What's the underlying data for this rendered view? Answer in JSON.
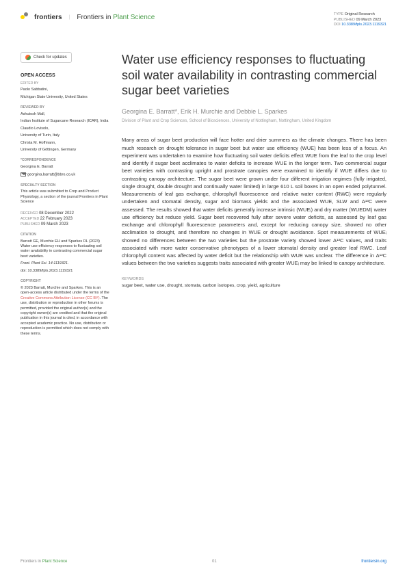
{
  "header": {
    "logo_text": "frontiers",
    "journal_prefix": "Frontiers in ",
    "journal_subject": "Plant Science",
    "type_label": "TYPE ",
    "type_value": "Original Research",
    "published_label": "PUBLISHED ",
    "published_value": "09 March 2023",
    "doi_label": "DOI ",
    "doi_value": "10.3389/fpls.2023.1119321"
  },
  "sidebar": {
    "check_updates": "Check for updates",
    "open_access": "OPEN ACCESS",
    "edited_by": "EDITED BY",
    "editor": "Paolo Sabbatini,",
    "editor_affil": "Michigan State University, United States",
    "reviewed_by": "REVIEWED BY",
    "rev1": "Ashutosh Mall,",
    "rev1_affil": "Indian Institute of Sugarcane Research (ICAR), India",
    "rev2": "Claudio Lovisolo,",
    "rev2_affil": "University of Turin, Italy",
    "rev3": "Christa M. Hoffmann,",
    "rev3_affil": "University of Göttingen, Germany",
    "correspondence": "*CORRESPONDENCE",
    "corr_name": "Georgina E. Barratt",
    "corr_email": "georgina.barratt@bbro.co.uk",
    "specialty": "SPECIALTY SECTION",
    "specialty_text": "This article was submitted to Crop and Product Physiology, a section of the journal Frontiers in Plant Science",
    "received_label": "RECEIVED ",
    "received": "08 December 2022",
    "accepted_label": "ACCEPTED ",
    "accepted": "22 February 2023",
    "published2_label": "PUBLISHED ",
    "published2": "09 March 2023",
    "citation": "CITATION",
    "citation_text": "Barratt GE, Murchie EH and Sparkes DL (2023) Water use efficiency responses to fluctuating soil water availability in contrasting commercial sugar beet varieties.",
    "citation_journal": "Front. Plant Sci. 14:1119321.",
    "citation_doi": "doi: 10.3389/fpls.2023.1119321",
    "copyright": "COPYRIGHT",
    "copyright_text1": "© 2023 Barratt, Murchie and Sparkes. This is an open-access article distributed under the terms of the ",
    "license": "Creative Commons Attribution License (CC BY)",
    "copyright_text2": ". The use, distribution or reproduction in other forums is permitted, provided the original author(s) and the copyright owner(s) are credited and that the original publication in this journal is cited, in accordance with accepted academic practice. No use, distribution or reproduction is permitted which does not comply with these terms."
  },
  "article": {
    "title": "Water use efficiency responses to fluctuating soil water availability in contrasting commercial sugar beet varieties",
    "authors": "Georgina E. Barratt*, Erik H. Murchie and Debbie L. Sparkes",
    "affiliation": "Division of Plant and Crop Sciences, School of Biosciences, University of Nottingham, Nottingham, United Kingdom",
    "abstract": "Many areas of sugar beet production will face hotter and drier summers as the climate changes. There has been much research on drought tolerance in sugar beet but water use efficiency (WUE) has been less of a focus. An experiment was undertaken to examine how fluctuating soil water deficits effect WUE from the leaf to the crop level and identify if sugar beet acclimates to water deficits to increase WUE in the longer term. Two commercial sugar beet varieties with contrasting upright and prostrate canopies were examined to identify if WUE differs due to contrasting canopy architecture. The sugar beet were grown under four different irrigation regimes (fully irrigated, single drought, double drought and continually water limited) in large 610 L soil boxes in an open ended polytunnel. Measurements of leaf gas exchange, chlorophyll fluorescence and relative water content (RWC) were regularly undertaken and stomatal density, sugar and biomass yields and the associated WUE, SLW and Δ¹³C were assessed. The results showed that water deficits generally increase intrinsic (WUEᵢ) and dry matter (WUEDM) water use efficiency but reduce yield. Sugar beet recovered fully after severe water deficits, as assessed by leaf gas exchange and chlorophyll fluorescence parameters and, except for reducing canopy size, showed no other acclimation to drought, and therefore no changes in WUE or drought avoidance. Spot measurements of WUEᵢ showed no differences between the two varieties but the prostrate variety showed lower Δ¹³C values, and traits associated with more water conservative phenotypes of a lower stomatal density and greater leaf RWC. Leaf chlorophyll content was affected by water deficit but the relationship with WUE was unclear. The difference in Δ¹³C values between the two varieties suggests traits associated with greater WUEᵢ may be linked to canopy architecture.",
    "keywords_label": "KEYWORDS",
    "keywords": "sugar beet, water use, drought, stomata, carbon isotopes, crop, yield, agriculture"
  },
  "footer": {
    "left_prefix": "Frontiers in ",
    "left_subject": "Plant Science",
    "page": "01",
    "right": "frontiersin.org"
  }
}
